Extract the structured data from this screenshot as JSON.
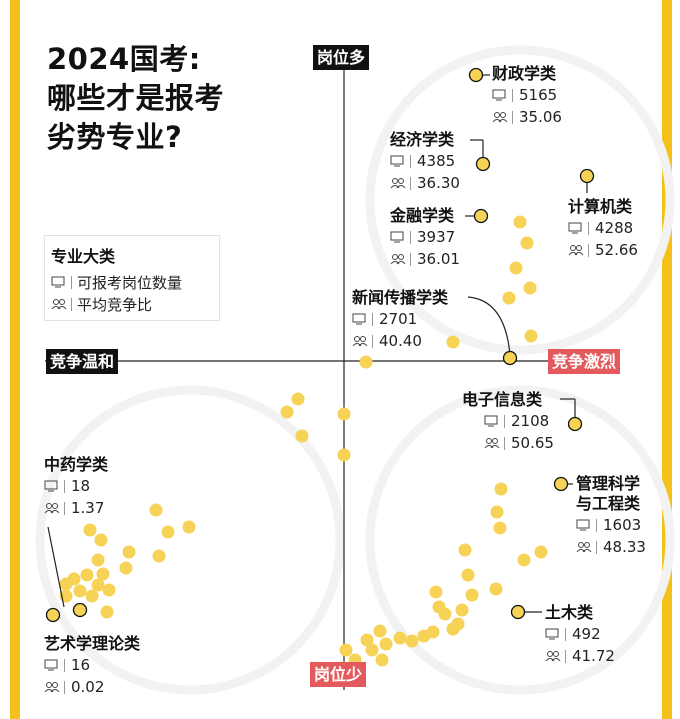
{
  "title": {
    "lines": [
      "2024国考:",
      "哪些才是报考",
      "劣势专业?"
    ]
  },
  "legend": {
    "title": "专业大类",
    "positions_label": "可报考岗位数量",
    "ratio_label": "平均竞争比",
    "icons": [
      "monitor-icon",
      "people-icon"
    ]
  },
  "axes": {
    "top": "岗位多",
    "bottom": "岗位少",
    "left": "竞争温和",
    "right": "竞争激烈"
  },
  "colors": {
    "accent_bar": "#f4c11a",
    "dot_fill": "#f6d256",
    "dot_highlight_stroke": "#111111",
    "tag_dark": "#111111",
    "tag_red": "#e4595b"
  },
  "chart_data": {
    "type": "scatter",
    "title": "2024国考:哪些才是报考劣势专业?",
    "xlabel_left": "竞争温和",
    "xlabel_right": "竞争激烈",
    "ylabel_top": "岗位多",
    "ylabel_bottom": "岗位少",
    "x_measure": "平均竞争比",
    "y_measure": "可报考岗位数量",
    "labeled_points": [
      {
        "name": "财政学类",
        "positions": "5165",
        "ratio": "35.06"
      },
      {
        "name": "经济学类",
        "positions": "4385",
        "ratio": "36.30"
      },
      {
        "name": "计算机类",
        "positions": "4288",
        "ratio": "52.66"
      },
      {
        "name": "金融学类",
        "positions": "3937",
        "ratio": "36.01"
      },
      {
        "name": "新闻传播学类",
        "positions": "2701",
        "ratio": "40.40"
      },
      {
        "name": "电子信息类",
        "positions": "2108",
        "ratio": "50.65"
      },
      {
        "name": "管理科学与工程类",
        "positions": "1603",
        "ratio": "48.33"
      },
      {
        "name": "土木类",
        "positions": "492",
        "ratio": "41.72"
      },
      {
        "name": "中药学类",
        "positions": "18",
        "ratio": "1.37"
      },
      {
        "name": "艺术学理论类",
        "positions": "16",
        "ratio": "0.02"
      }
    ]
  },
  "labels": {
    "caizheng": {
      "name": "财政学类",
      "positions": "5165",
      "ratio": "35.06"
    },
    "jingji": {
      "name": "经济学类",
      "positions": "4385",
      "ratio": "36.30"
    },
    "jisuanji": {
      "name": "计算机类",
      "positions": "4288",
      "ratio": "52.66"
    },
    "jinrong": {
      "name": "金融学类",
      "positions": "3937",
      "ratio": "36.01"
    },
    "xinwen": {
      "name": "新闻传播学类",
      "positions": "2701",
      "ratio": "40.40"
    },
    "dianzi": {
      "name": "电子信息类",
      "positions": "2108",
      "ratio": "50.65"
    },
    "guanli": {
      "name_line1": "管理科学",
      "name_line2": "与工程类",
      "positions": "1603",
      "ratio": "48.33"
    },
    "tumu": {
      "name": "土木类",
      "positions": "492",
      "ratio": "41.72"
    },
    "zhongyao": {
      "name": "中药学类",
      "positions": "18",
      "ratio": "1.37"
    },
    "yishu": {
      "name": "艺术学理论类",
      "positions": "16",
      "ratio": "0.02"
    }
  }
}
